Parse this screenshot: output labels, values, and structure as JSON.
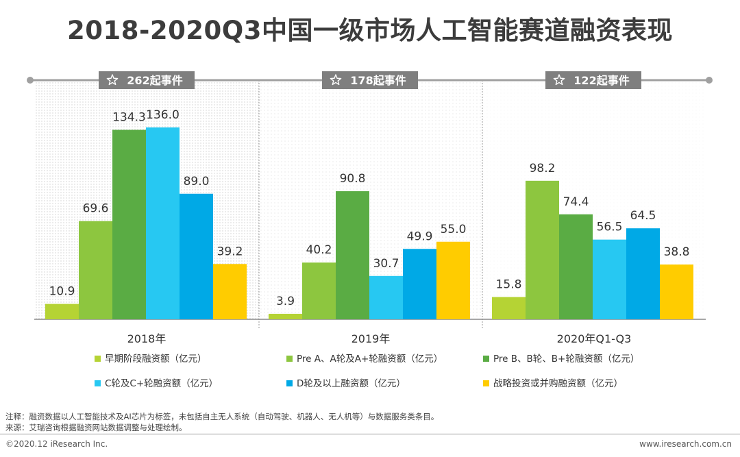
{
  "page": {
    "title": "2018-2020Q3中国一级市场人工智能赛道融资表现",
    "note": "注释：融资数据以人工智能技术及AI芯片为标签，未包括自主无人系统（自动驾驶、机器人、无人机等）与数据服务类条目。",
    "source": "来源：艾瑞咨询根据融资网站数据调整与处理绘制。",
    "copyright": "©2020.12 iResearch Inc.",
    "website": "www.iresearch.com.cn"
  },
  "chart_data": {
    "type": "bar",
    "title": "2018-2020Q3中国一级市场人工智能赛道融资表现",
    "categories": [
      "2018年",
      "2019年",
      "2020年Q1-Q3"
    ],
    "event_badges": [
      "262起事件",
      "178起事件",
      "122起事件"
    ],
    "ylim": [
      0,
      145
    ],
    "series": [
      {
        "name": "早期阶段融资额（亿元）",
        "color": "#b5d334",
        "values": [
          10.9,
          3.9,
          15.8
        ]
      },
      {
        "name": "Pre A、A轮及A+轮融资额（亿元）",
        "color": "#8dc63f",
        "values": [
          69.6,
          40.2,
          98.2
        ]
      },
      {
        "name": "Pre B、B轮、B+轮融资额（亿元）",
        "color": "#5aac44",
        "values": [
          134.3,
          90.8,
          74.4
        ]
      },
      {
        "name": "C轮及C+轮融资额（亿元）",
        "color": "#27c8f2",
        "values": [
          136.0,
          30.7,
          56.5
        ]
      },
      {
        "name": "D轮及以上融资额（亿元）",
        "color": "#00a9e6",
        "values": [
          89.0,
          49.9,
          64.5
        ]
      },
      {
        "name": "战略投资或并购融资额（亿元）",
        "color": "#ffcc00",
        "values": [
          39.2,
          55.0,
          38.8
        ]
      }
    ]
  }
}
